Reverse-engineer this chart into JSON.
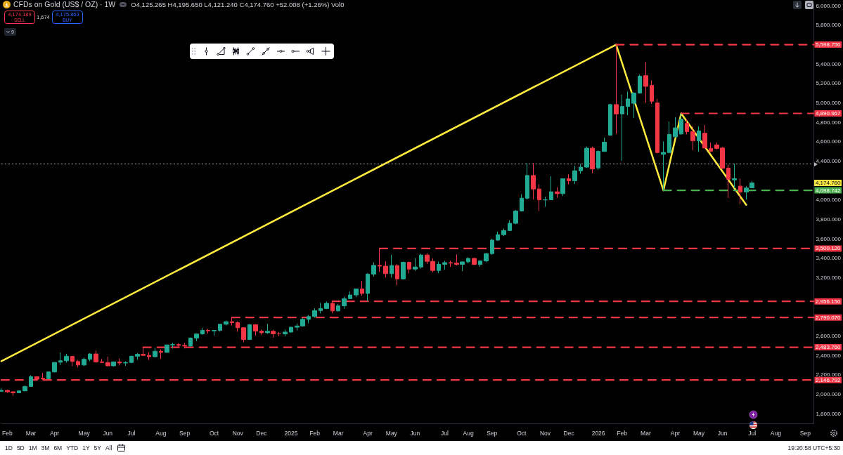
{
  "chart_data": {
    "type": "candlestick",
    "title": "CFDs on Gold (US$ / OZ) · 1W",
    "subtitle": "O4,125.265 H4,195.650 L4,121.240 C4,174.760 +52.008 (+1.26%) Vol0",
    "x": [
      "2024-01-29",
      "2024-02-05",
      "2024-02-12",
      "2024-02-19",
      "2024-02-26",
      "2024-03-04",
      "2024-03-11",
      "2024-03-18",
      "2024-03-25",
      "2024-04-01",
      "2024-04-08",
      "2024-04-15",
      "2024-04-22",
      "2024-04-29",
      "2024-05-06",
      "2024-05-13",
      "2024-05-20",
      "2024-05-27",
      "2024-06-03",
      "2024-06-10",
      "2024-06-17",
      "2024-06-24",
      "2024-07-01",
      "2024-07-08",
      "2024-07-15",
      "2024-07-22",
      "2024-07-29",
      "2024-08-05",
      "2024-08-12",
      "2024-08-19",
      "2024-08-26",
      "2024-09-02",
      "2024-09-09",
      "2024-09-16",
      "2024-09-23",
      "2024-09-30",
      "2024-10-07",
      "2024-10-14",
      "2024-10-21",
      "2024-10-28",
      "2024-11-04",
      "2024-11-11",
      "2024-11-18",
      "2024-11-25",
      "2024-12-02",
      "2024-12-09",
      "2024-12-16",
      "2024-12-23",
      "2024-12-30",
      "2025-01-06",
      "2025-01-13",
      "2025-01-20",
      "2025-01-27",
      "2025-02-03",
      "2025-02-10",
      "2025-02-17",
      "2025-02-24",
      "2025-03-03",
      "2025-03-10",
      "2025-03-17",
      "2025-03-24",
      "2025-03-31",
      "2025-04-07",
      "2025-04-14",
      "2025-04-21",
      "2025-04-28",
      "2025-05-05",
      "2025-05-12",
      "2025-05-19",
      "2025-05-26",
      "2025-06-02",
      "2025-06-09",
      "2025-06-16",
      "2025-06-23",
      "2025-06-30",
      "2025-07-07",
      "2025-07-14",
      "2025-07-21",
      "2025-07-28",
      "2025-08-04",
      "2025-08-11",
      "2025-08-18",
      "2025-08-25",
      "2025-09-01",
      "2025-09-08",
      "2025-09-15",
      "2025-09-22",
      "2025-09-29",
      "2025-10-06",
      "2025-10-13",
      "2025-10-20",
      "2025-10-27",
      "2025-11-03",
      "2025-11-10",
      "2025-11-17",
      "2025-11-24",
      "2025-12-01",
      "2025-12-08",
      "2025-12-15",
      "2025-12-22",
      "2025-12-29",
      "2026-01-05",
      "2026-01-12",
      "2026-01-19",
      "2026-01-26",
      "2026-02-02",
      "2026-02-09",
      "2026-02-16",
      "2026-02-23",
      "2026-03-02",
      "2026-03-09",
      "2026-03-16",
      "2026-03-23",
      "2026-03-30",
      "2026-04-06",
      "2026-04-13",
      "2026-04-20",
      "2026-04-27",
      "2026-05-04",
      "2026-05-11",
      "2026-05-18",
      "2026-05-25",
      "2026-06-01",
      "2026-06-08",
      "2026-06-15",
      "2026-06-22",
      "2026-06-29",
      "2026-07-06"
    ],
    "ohlc": [
      [
        2030,
        2065,
        2025,
        2040
      ],
      [
        2040,
        2045,
        2015,
        2025
      ],
      [
        2025,
        2030,
        1985,
        2015
      ],
      [
        2015,
        2040,
        2010,
        2035
      ],
      [
        2035,
        2090,
        2030,
        2080
      ],
      [
        2080,
        2195,
        2075,
        2180
      ],
      [
        2180,
        2185,
        2145,
        2155
      ],
      [
        2165,
        2220,
        2145,
        2158
      ],
      [
        2160,
        2235,
        2155,
        2230
      ],
      [
        2230,
        2330,
        2225,
        2328
      ],
      [
        2330,
        2430,
        2300,
        2345
      ],
      [
        2345,
        2417,
        2325,
        2392
      ],
      [
        2390,
        2395,
        2290,
        2337
      ],
      [
        2337,
        2352,
        2277,
        2301
      ],
      [
        2301,
        2378,
        2290,
        2360
      ],
      [
        2360,
        2422,
        2340,
        2415
      ],
      [
        2415,
        2450,
        2325,
        2334
      ],
      [
        2334,
        2364,
        2323,
        2327
      ],
      [
        2327,
        2388,
        2287,
        2293
      ],
      [
        2293,
        2335,
        2286,
        2333
      ],
      [
        2333,
        2368,
        2296,
        2322
      ],
      [
        2322,
        2340,
        2293,
        2327
      ],
      [
        2327,
        2393,
        2319,
        2392
      ],
      [
        2392,
        2424,
        2353,
        2411
      ],
      [
        2411,
        2483.76,
        2394,
        2400
      ],
      [
        2400,
        2433,
        2353,
        2387
      ],
      [
        2387,
        2477,
        2378,
        2443
      ],
      [
        2443,
        2462,
        2364,
        2431
      ],
      [
        2431,
        2509,
        2426,
        2508
      ],
      [
        2508,
        2531,
        2470,
        2512
      ],
      [
        2512,
        2526,
        2492,
        2503
      ],
      [
        2503,
        2529,
        2471,
        2497
      ],
      [
        2497,
        2586,
        2485,
        2578
      ],
      [
        2578,
        2625,
        2547,
        2621
      ],
      [
        2621,
        2685,
        2612,
        2658
      ],
      [
        2659,
        2673,
        2625,
        2653
      ],
      [
        2653,
        2661,
        2604,
        2657
      ],
      [
        2657,
        2722,
        2645,
        2721
      ],
      [
        2721,
        2759,
        2709,
        2747
      ],
      [
        2747,
        2790.07,
        2708,
        2737
      ],
      [
        2737,
        2750,
        2643,
        2685
      ],
      [
        2685,
        2690,
        2537,
        2563
      ],
      [
        2563,
        2721,
        2559,
        2716
      ],
      [
        2716,
        2721,
        2605,
        2650
      ],
      [
        2650,
        2666,
        2613,
        2633
      ],
      [
        2633,
        2726,
        2623,
        2648
      ],
      [
        2648,
        2664,
        2583,
        2622
      ],
      [
        2622,
        2638,
        2600,
        2621
      ],
      [
        2621,
        2665,
        2596,
        2640
      ],
      [
        2640,
        2694,
        2634,
        2690
      ],
      [
        2690,
        2726,
        2656,
        2703
      ],
      [
        2703,
        2786,
        2699,
        2771
      ],
      [
        2771,
        2817,
        2730,
        2800
      ],
      [
        2800,
        2886,
        2789,
        2861
      ],
      [
        2861,
        2942,
        2832,
        2883
      ],
      [
        2883,
        2954,
        2876,
        2936
      ],
      [
        2936,
        2956.15,
        2833,
        2858
      ],
      [
        2858,
        2930,
        2853,
        2910
      ],
      [
        2910,
        3005,
        2880,
        2984
      ],
      [
        2984,
        3057,
        2982,
        3022
      ],
      [
        3022,
        3087,
        3000,
        3085
      ],
      [
        3085,
        3168,
        3015,
        3038
      ],
      [
        3038,
        3245,
        2957,
        3237
      ],
      [
        3237,
        3358,
        3210,
        3327
      ],
      [
        3327,
        3500.12,
        3260,
        3319
      ],
      [
        3319,
        3368,
        3202,
        3241
      ],
      [
        3241,
        3435,
        3201,
        3325
      ],
      [
        3325,
        3339,
        3121,
        3188
      ],
      [
        3188,
        3366,
        3180,
        3358
      ],
      [
        3358,
        3365,
        3245,
        3289
      ],
      [
        3289,
        3403,
        3270,
        3310
      ],
      [
        3310,
        3446,
        3293,
        3433
      ],
      [
        3433,
        3452,
        3340,
        3368
      ],
      [
        3368,
        3398,
        3255,
        3274
      ],
      [
        3274,
        3365,
        3247,
        3337
      ],
      [
        3337,
        3374,
        3282,
        3355
      ],
      [
        3355,
        3375,
        3310,
        3350
      ],
      [
        3350,
        3439,
        3325,
        3337
      ],
      [
        3337,
        3363,
        3268,
        3363
      ],
      [
        3363,
        3410,
        3350,
        3398
      ],
      [
        3398,
        3405,
        3330,
        3336
      ],
      [
        3336,
        3380,
        3312,
        3372
      ],
      [
        3372,
        3453,
        3360,
        3448
      ],
      [
        3448,
        3600,
        3436,
        3587
      ],
      [
        3587,
        3674,
        3578,
        3643
      ],
      [
        3643,
        3707,
        3628,
        3685
      ],
      [
        3685,
        3791,
        3680,
        3760
      ],
      [
        3760,
        3897,
        3750,
        3886
      ],
      [
        3886,
        4059,
        3881,
        4018
      ],
      [
        4018,
        4379,
        4005,
        4252
      ],
      [
        4252,
        4381,
        4004,
        4113
      ],
      [
        4113,
        4161,
        3886,
        4002
      ],
      [
        4000,
        4035,
        3930,
        4002
      ],
      [
        4002,
        4245,
        3998,
        4084
      ],
      [
        4084,
        4132,
        4022,
        4065
      ],
      [
        4065,
        4220,
        4040,
        4218
      ],
      [
        4218,
        4264,
        4160,
        4198
      ],
      [
        4198,
        4353,
        4165,
        4300
      ],
      [
        4300,
        4375,
        4271,
        4338
      ],
      [
        4338,
        4550,
        4330,
        4533
      ],
      [
        4533,
        4550,
        4275,
        4319
      ],
      [
        4330,
        4510,
        4310,
        4500
      ],
      [
        4500,
        4640,
        4495,
        4595
      ],
      [
        4667,
        4990,
        4660,
        4982
      ],
      [
        4982,
        5598.75,
        4680,
        4886
      ],
      [
        4886,
        5083,
        4403,
        4963
      ],
      [
        4963,
        5116,
        4872,
        5040
      ],
      [
        4995,
        5110,
        4845,
        5100
      ],
      [
        5100,
        5290,
        5095,
        5275
      ],
      [
        5280,
        5420,
        5000,
        5170
      ],
      [
        5179,
        5231,
        4990,
        5016
      ],
      [
        4999,
        5040,
        4480,
        4488
      ],
      [
        4470,
        4603,
        4098.742,
        4490
      ],
      [
        4488,
        4807,
        4480,
        4675
      ],
      [
        4651,
        4852,
        4640,
        4742
      ],
      [
        4680,
        4890.967,
        4670,
        4831
      ],
      [
        4788,
        4831,
        4675,
        4704
      ],
      [
        4704,
        4759,
        4511,
        4610
      ],
      [
        4610,
        4759,
        4495,
        4711
      ],
      [
        4687,
        4771,
        4530,
        4535
      ],
      [
        4531,
        4591,
        4490,
        4502
      ],
      [
        4567,
        4591,
        4520,
        4531
      ],
      [
        4535,
        4545,
        4320,
        4327
      ],
      [
        4327,
        4363,
        4022,
        4214
      ],
      [
        4207,
        4375,
        4123,
        4219
      ],
      [
        4142,
        4219,
        3959,
        4082
      ],
      [
        4082,
        4142,
        4003,
        4123
      ],
      [
        4125.265,
        4195.65,
        4121.24,
        4174.76
      ]
    ],
    "colors": [
      "#22ab94",
      "#f23645",
      "#f23645",
      "#22ab94",
      "#22ab94",
      "#22ab94",
      "#f23645",
      "#f23645",
      "#22ab94",
      "#22ab94",
      "#22ab94",
      "#22ab94",
      "#f23645",
      "#f23645",
      "#22ab94",
      "#22ab94",
      "#f23645",
      "#f23645",
      "#f23645",
      "#22ab94",
      "#f23645",
      "#22ab94",
      "#22ab94",
      "#22ab94",
      "#f23645",
      "#f23645",
      "#22ab94",
      "#f23645",
      "#22ab94",
      "#22ab94",
      "#f23645",
      "#f23645",
      "#22ab94",
      "#22ab94",
      "#22ab94",
      "#f23645",
      "#22ab94",
      "#22ab94",
      "#22ab94",
      "#f23645",
      "#f23645",
      "#f23645",
      "#22ab94",
      "#f23645",
      "#f23645",
      "#22ab94",
      "#f23645",
      "#f23645",
      "#22ab94",
      "#22ab94",
      "#22ab94",
      "#22ab94",
      "#22ab94",
      "#22ab94",
      "#22ab94",
      "#22ab94",
      "#f23645",
      "#22ab94",
      "#22ab94",
      "#22ab94",
      "#22ab94",
      "#f23645",
      "#22ab94",
      "#22ab94",
      "#f23645",
      "#f23645",
      "#22ab94",
      "#f23645",
      "#22ab94",
      "#f23645",
      "#22ab94",
      "#22ab94",
      "#f23645",
      "#f23645",
      "#22ab94",
      "#22ab94",
      "#f23645",
      "#f23645",
      "#22ab94",
      "#22ab94",
      "#f23645",
      "#22ab94",
      "#22ab94",
      "#22ab94",
      "#22ab94",
      "#22ab94",
      "#22ab94",
      "#22ab94",
      "#22ab94",
      "#22ab94",
      "#f23645",
      "#f23645",
      "#22ab94",
      "#22ab94",
      "#f23645",
      "#22ab94",
      "#f23645",
      "#22ab94",
      "#22ab94",
      "#22ab94",
      "#f23645",
      "#22ab94",
      "#22ab94",
      "#22ab94",
      "#f23645",
      "#22ab94",
      "#22ab94",
      "#22ab94",
      "#22ab94",
      "#f23645",
      "#f23645",
      "#f23645",
      "#22ab94",
      "#22ab94",
      "#22ab94",
      "#22ab94",
      "#f23645",
      "#f23645",
      "#22ab94",
      "#f23645",
      "#f23645",
      "#f23645",
      "#f23645",
      "#f23645",
      "#22ab94",
      "#f23645",
      "#22ab94",
      "#22ab94"
    ],
    "series": [
      {
        "type": "line",
        "color": "#ffeb3b",
        "line_style": "solid",
        "x": [
          "2024-01-29",
          "2026-01-26",
          "2026-03-23",
          "2026-04-13",
          "2026-06-29"
        ],
        "values": [
          2340,
          5598.75,
          4098.742,
          4890.967,
          3950
        ]
      },
      {
        "type": "line",
        "color": "#f23645",
        "line_style": "dashed",
        "x": [
          "2026-01-26",
          "2026-09-17"
        ],
        "values": [
          5598.75,
          5598.75
        ],
        "value_labels": [
          null,
          "5,598.750"
        ]
      },
      {
        "type": "line",
        "color": "#f23645",
        "line_style": "dashed",
        "x": [
          "2026-04-13",
          "2026-09-17"
        ],
        "values": [
          4890.967,
          4890.967
        ],
        "value_labels": [
          null,
          "4,890.967"
        ]
      },
      {
        "type": "line",
        "color": "#4caf50",
        "line_style": "dashed",
        "x": [
          "2026-03-23",
          "2026-09-17"
        ],
        "values": [
          4098.742,
          4098.742
        ],
        "value_labels": [
          null,
          "4,098.742"
        ]
      },
      {
        "type": "line",
        "color": "#f23645",
        "line_style": "dashed",
        "x": [
          "2025-04-21",
          "2026-09-17"
        ],
        "values": [
          3500.12,
          3500.12
        ],
        "value_labels": [
          null,
          "3,500.120"
        ]
      },
      {
        "type": "line",
        "color": "#f23645",
        "line_style": "dashed",
        "x": [
          "2025-02-24",
          "2026-09-17"
        ],
        "values": [
          2956.15,
          2956.15
        ],
        "value_labels": [
          null,
          "2,956.150"
        ]
      },
      {
        "type": "line",
        "color": "#f23645",
        "line_style": "dashed",
        "x": [
          "2024-10-28",
          "2026-09-17"
        ],
        "values": [
          2790.07,
          2790.07
        ],
        "value_labels": [
          null,
          "2,790.070"
        ]
      },
      {
        "type": "line",
        "color": "#f23645",
        "line_style": "dashed",
        "x": [
          "2024-07-15",
          "2026-09-17"
        ],
        "values": [
          2483.76,
          2483.76
        ],
        "value_labels": [
          null,
          "2,483.760"
        ]
      },
      {
        "type": "line",
        "color": "#f23645",
        "line_style": "dashed",
        "x": [
          "2024-01-29",
          "2026-09-17"
        ],
        "values": [
          2146.792,
          2146.792
        ],
        "value_labels": [
          null,
          "2,146.792"
        ]
      }
    ],
    "ref_lines": [
      {
        "axis": "y",
        "value": 4370,
        "label": null,
        "color": "#b2b5be",
        "line_style": "dotted"
      }
    ],
    "xlim": [
      "2024-01-29",
      "2026-09-17"
    ],
    "xticks": [
      {
        "value": "2024-02-05",
        "label": "Feb"
      },
      {
        "value": "2024-03-04",
        "label": "Mar"
      },
      {
        "value": "2024-04-01",
        "label": "Apr"
      },
      {
        "value": "2024-05-06",
        "label": "May"
      },
      {
        "value": "2024-06-03",
        "label": "Jun"
      },
      {
        "value": "2024-07-01",
        "label": "Jul"
      },
      {
        "value": "2024-08-05",
        "label": "Aug"
      },
      {
        "value": "2024-09-02",
        "label": "Sep"
      },
      {
        "value": "2024-10-07",
        "label": "Oct"
      },
      {
        "value": "2024-11-04",
        "label": "Nov"
      },
      {
        "value": "2024-12-02",
        "label": "Dec"
      },
      {
        "value": "2025-01-06",
        "label": "2025"
      },
      {
        "value": "2025-02-03",
        "label": "Feb"
      },
      {
        "value": "2025-03-03",
        "label": "Mar"
      },
      {
        "value": "2025-04-07",
        "label": "Apr"
      },
      {
        "value": "2025-05-05",
        "label": "May"
      },
      {
        "value": "2025-06-02",
        "label": "Jun"
      },
      {
        "value": "2025-07-07",
        "label": "Jul"
      },
      {
        "value": "2025-08-04",
        "label": "Aug"
      },
      {
        "value": "2025-09-01",
        "label": "Sep"
      },
      {
        "value": "2025-10-06",
        "label": "Oct"
      },
      {
        "value": "2025-11-03",
        "label": "Nov"
      },
      {
        "value": "2025-12-01",
        "label": "Dec"
      },
      {
        "value": "2026-01-05",
        "label": "2026"
      },
      {
        "value": "2026-02-02",
        "label": "Feb"
      },
      {
        "value": "2026-03-02",
        "label": "Mar"
      },
      {
        "value": "2026-04-06",
        "label": "Apr"
      },
      {
        "value": "2026-05-04",
        "label": "May"
      },
      {
        "value": "2026-06-01",
        "label": "Jun"
      },
      {
        "value": "2026-07-06",
        "label": "Jul"
      },
      {
        "value": "2026-08-03",
        "label": "Aug"
      },
      {
        "value": "2026-09-07",
        "label": "Sep"
      }
    ],
    "ylim": [
      1700,
      6015
    ],
    "yticks": [
      {
        "value": 1800,
        "label": "1,800.000"
      },
      {
        "value": 2000,
        "label": "2,000.000"
      },
      {
        "value": 2200,
        "label": "2,200.000"
      },
      {
        "value": 2400,
        "label": "2,400.000"
      },
      {
        "value": 2600,
        "label": "2,600.000"
      },
      {
        "value": 3200,
        "label": "3,200.000"
      },
      {
        "value": 3400,
        "label": "3,400.000"
      },
      {
        "value": 3600,
        "label": "3,600.000"
      },
      {
        "value": 3800,
        "label": "3,800.000"
      },
      {
        "value": 4000,
        "label": "4,000.000"
      },
      {
        "value": 4400,
        "label": "4,400.000"
      },
      {
        "value": 4600,
        "label": "4,600.000"
      },
      {
        "value": 4800,
        "label": "4,800.000"
      },
      {
        "value": 5000,
        "label": "5,000.000"
      },
      {
        "value": 5200,
        "label": "5,200.000"
      },
      {
        "value": 5400,
        "label": "5,400.000"
      },
      {
        "value": 5800,
        "label": "5,800.000"
      },
      {
        "value": 6000,
        "label": "6,000.000"
      }
    ],
    "grid": false,
    "marker": "none",
    "annotations": [
      "4,174.760",
      "4,174.189",
      "SELL",
      "1,674",
      "4,175.863",
      "BUY",
      "9",
      "1D",
      "5D",
      "1M",
      "3M",
      "6M",
      "YTD",
      "1Y",
      "5Y",
      "All",
      "19:20:58 UTC+5:30"
    ]
  }
}
